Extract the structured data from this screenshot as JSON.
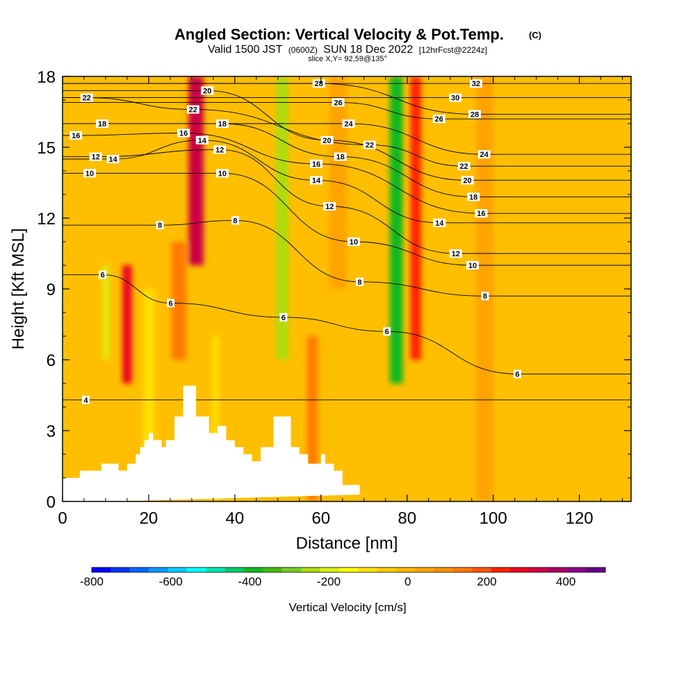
{
  "header": {
    "title": "Angled Section: Vertical Velocity & Pot.Temp.",
    "title_tag": "(C)",
    "valid_prefix": "Valid 1500 JST",
    "valid_utc": "(0600Z)",
    "valid_date": "SUN 18 Dec 2022",
    "valid_fcst": "[12hrFcst@2224z]",
    "slice": "slice X,Y= 92,59@135°"
  },
  "colors": {
    "ground": "#ffffff",
    "contour": "#000000",
    "background": "#ffffff"
  },
  "chart_data": {
    "type": "heatmap",
    "xlabel": "Distance [nm]",
    "ylabel": "Height [Kft MSL]",
    "xlim": [
      0,
      132
    ],
    "ylim": [
      0,
      18
    ],
    "x_ticks": [
      "0",
      "20",
      "40",
      "60",
      "80",
      "100",
      "120"
    ],
    "x_tick_values": [
      0,
      20,
      40,
      60,
      80,
      100,
      120
    ],
    "y_ticks": [
      "0",
      "3",
      "6",
      "9",
      "12",
      "15",
      "18"
    ],
    "y_tick_values": [
      0,
      3,
      6,
      9,
      12,
      15,
      18
    ],
    "colorbar": {
      "label": "Vertical Velocity [cm/s]",
      "range": [
        -800,
        500
      ],
      "tick_labels": [
        "-800",
        "-600",
        "-400",
        "-200",
        "0",
        "200",
        "400"
      ],
      "tick_values": [
        -800,
        -600,
        -400,
        -200,
        0,
        200,
        400
      ],
      "colors": [
        "#0000ff",
        "#0033ff",
        "#0066ff",
        "#0099ff",
        "#00ccff",
        "#00ffff",
        "#00e5b3",
        "#00cc66",
        "#11b822",
        "#44bb11",
        "#77cc22",
        "#aadd11",
        "#ddee11",
        "#ffff00",
        "#ffe100",
        "#ffcc00",
        "#ffb800",
        "#ffa300",
        "#ff8f00",
        "#ff7a00",
        "#ff5500",
        "#ff2200",
        "#ee0022",
        "#cc0044",
        "#aa0066",
        "#880088",
        "#660088"
      ]
    },
    "terrain": {
      "x": [
        0,
        4,
        4,
        9,
        9,
        13,
        13,
        15,
        15,
        17,
        17,
        18,
        18,
        19,
        19,
        20,
        20,
        21,
        21,
        23,
        23,
        24,
        24,
        26,
        26,
        28,
        28,
        31,
        31,
        34,
        34,
        36,
        36,
        38,
        38,
        40,
        40,
        42,
        42,
        44,
        44,
        46,
        46,
        49,
        49,
        53,
        53,
        55,
        55,
        57,
        57,
        60,
        60,
        61,
        61,
        63,
        63,
        65,
        65,
        69,
        69,
        71,
        71,
        132
      ],
      "y": [
        1.0,
        1.0,
        1.3,
        1.3,
        1.6,
        1.6,
        1.3,
        1.3,
        1.6,
        1.6,
        2.0,
        2.0,
        2.3,
        2.3,
        2.6,
        2.6,
        2.9,
        2.9,
        2.6,
        2.6,
        2.3,
        2.3,
        2.6,
        2.6,
        3.6,
        3.6,
        4.9,
        4.9,
        3.6,
        3.6,
        2.9,
        2.9,
        3.2,
        3.2,
        2.6,
        2.6,
        2.3,
        2.3,
        2.0,
        2.0,
        1.7,
        1.7,
        2.3,
        2.3,
        3.6,
        3.6,
        2.3,
        2.3,
        2.0,
        2.0,
        1.6,
        1.6,
        2.0,
        2.0,
        1.6,
        1.6,
        1.3,
        1.3,
        0.7,
        0.7,
        0.3,
        0.3
      ]
    },
    "vertical_velocity_bands": [
      {
        "x_center": 10,
        "width": 1.5,
        "z_min": 6,
        "z_max": 10,
        "value": -180
      },
      {
        "x_center": 15,
        "width": 2.2,
        "z_min": 5,
        "z_max": 10,
        "value": 300
      },
      {
        "x_center": 20,
        "width": 2.5,
        "z_min": 2,
        "z_max": 9,
        "value": -120
      },
      {
        "x_center": 27,
        "width": 3.5,
        "z_min": 6,
        "z_max": 11,
        "value": 160
      },
      {
        "x_center": 31,
        "width": 3.5,
        "z_min": 10,
        "z_max": 18,
        "value": 320
      },
      {
        "x_center": 35.5,
        "width": 1.5,
        "z_min": 0,
        "z_max": 7,
        "value": -100
      },
      {
        "x_center": 51,
        "width": 2.8,
        "z_min": 6,
        "z_max": 18,
        "value": -250
      },
      {
        "x_center": 58,
        "width": 2.5,
        "z_min": 0,
        "z_max": 7,
        "value": 120
      },
      {
        "x_center": 77.5,
        "width": 3.0,
        "z_min": 5,
        "z_max": 18,
        "value": -380
      },
      {
        "x_center": 82,
        "width": 2.5,
        "z_min": 6,
        "z_max": 18,
        "value": 240
      },
      {
        "x_center": 98,
        "width": 4,
        "z_min": 0,
        "z_max": 18,
        "value": 60
      },
      {
        "x_center": 64,
        "width": 4,
        "z_min": 9,
        "z_max": 18,
        "value": 60
      }
    ],
    "pot_temp_contour_labels": [
      {
        "text": "4",
        "x": 5.4,
        "y": 4.3
      },
      {
        "text": "6",
        "x": 9.3,
        "y": 9.6
      },
      {
        "text": "6",
        "x": 25.1,
        "y": 8.4
      },
      {
        "text": "6",
        "x": 51.3,
        "y": 7.8
      },
      {
        "text": "6",
        "x": 75.3,
        "y": 7.2
      },
      {
        "text": "6",
        "x": 105.6,
        "y": 5.4
      },
      {
        "text": "8",
        "x": 22.6,
        "y": 11.7
      },
      {
        "text": "8",
        "x": 40.1,
        "y": 11.9
      },
      {
        "text": "8",
        "x": 69.0,
        "y": 9.3
      },
      {
        "text": "8",
        "x": 98.1,
        "y": 8.7
      },
      {
        "text": "10",
        "x": 6.3,
        "y": 13.9
      },
      {
        "text": "10",
        "x": 37.1,
        "y": 13.9
      },
      {
        "text": "10",
        "x": 67.6,
        "y": 11.0
      },
      {
        "text": "10",
        "x": 95.2,
        "y": 10.0
      },
      {
        "text": "12",
        "x": 7.7,
        "y": 14.6
      },
      {
        "text": "12",
        "x": 36.5,
        "y": 14.9
      },
      {
        "text": "12",
        "x": 62.0,
        "y": 12.5
      },
      {
        "text": "12",
        "x": 91.3,
        "y": 10.5
      },
      {
        "text": "14",
        "x": 11.7,
        "y": 14.5
      },
      {
        "text": "14",
        "x": 32.4,
        "y": 15.3
      },
      {
        "text": "14",
        "x": 58.9,
        "y": 13.6
      },
      {
        "text": "14",
        "x": 87.5,
        "y": 11.8
      },
      {
        "text": "16",
        "x": 3.1,
        "y": 15.5
      },
      {
        "text": "16",
        "x": 28.1,
        "y": 15.6
      },
      {
        "text": "16",
        "x": 58.9,
        "y": 14.3
      },
      {
        "text": "16",
        "x": 97.2,
        "y": 12.2
      },
      {
        "text": "18",
        "x": 9.2,
        "y": 16.0
      },
      {
        "text": "18",
        "x": 37.1,
        "y": 16.0
      },
      {
        "text": "18",
        "x": 64.5,
        "y": 14.6
      },
      {
        "text": "18",
        "x": 95.4,
        "y": 12.9
      },
      {
        "text": "20",
        "x": 33.6,
        "y": 17.4
      },
      {
        "text": "20",
        "x": 61.4,
        "y": 15.3
      },
      {
        "text": "20",
        "x": 94.0,
        "y": 13.6
      },
      {
        "text": "22",
        "x": 5.6,
        "y": 17.1
      },
      {
        "text": "22",
        "x": 30.3,
        "y": 16.6
      },
      {
        "text": "22",
        "x": 71.3,
        "y": 15.1
      },
      {
        "text": "22",
        "x": 93.2,
        "y": 14.2
      },
      {
        "text": "24",
        "x": 66.4,
        "y": 16.0
      },
      {
        "text": "24",
        "x": 97.9,
        "y": 14.7
      },
      {
        "text": "26",
        "x": 64.0,
        "y": 16.9
      },
      {
        "text": "26",
        "x": 87.4,
        "y": 16.2
      },
      {
        "text": "28",
        "x": 59.5,
        "y": 17.7
      },
      {
        "text": "28",
        "x": 95.7,
        "y": 16.4
      },
      {
        "text": "30",
        "x": 91.2,
        "y": 17.1
      },
      {
        "text": "32",
        "x": 96.0,
        "y": 17.7
      }
    ]
  }
}
